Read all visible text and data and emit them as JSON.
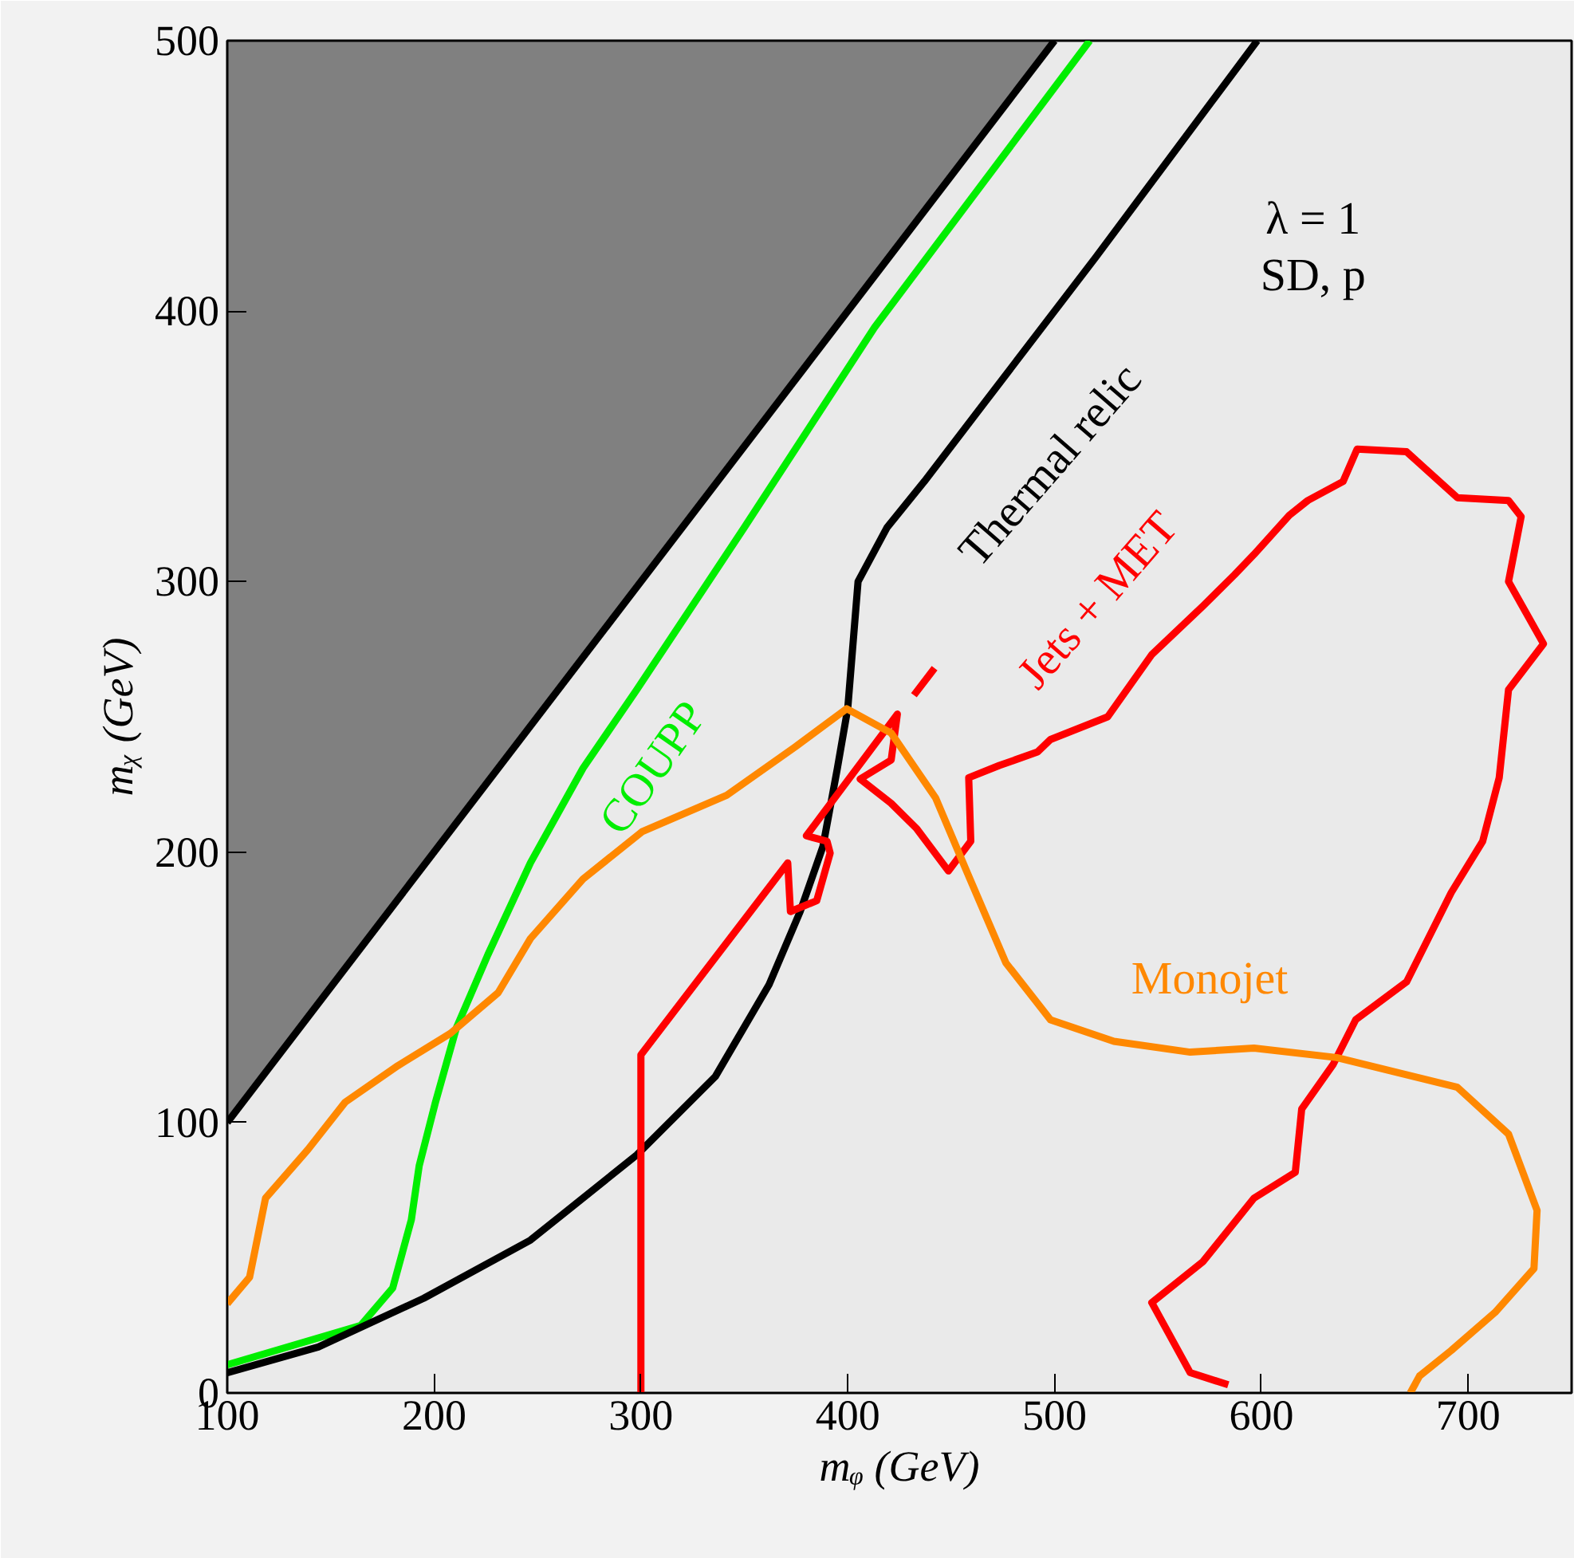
{
  "chart_data": {
    "type": "line",
    "xlabel": "mᵩ (GeV)",
    "ylabel": "mᵪ (GeV)",
    "xlim": [
      100,
      750
    ],
    "ylim": [
      0,
      500
    ],
    "xticks": [
      100,
      200,
      300,
      400,
      500,
      600,
      700
    ],
    "yticks": [
      0,
      100,
      200,
      300,
      400,
      500
    ],
    "grid": false,
    "marker": "none",
    "line_style": "solid",
    "series": [
      {
        "color": "#000000",
        "x": [
          100,
          500
        ],
        "values": [
          100,
          500
        ],
        "lower": [
          100,
          500
        ],
        "upper": [
          500,
          500
        ]
      },
      {
        "color": "#00ee00",
        "x": [
          100,
          164.6,
          180,
          189,
          192.8,
          200.5,
          210.8,
          226,
          246.6,
          272,
          298,
          350,
          413,
          517
        ],
        "values": [
          10.4,
          25,
          38.8,
          64,
          84,
          107,
          135,
          162,
          196,
          231,
          260,
          320,
          394,
          500
        ]
      },
      {
        "color": "#000000",
        "x": [
          100,
          144,
          195,
          246.6,
          298,
          336,
          362,
          377,
          388,
          395,
          400,
          405,
          419,
          437,
          470,
          520,
          598
        ],
        "values": [
          7.5,
          17,
          35,
          56.5,
          88,
          117,
          151,
          178,
          202,
          231,
          253,
          300,
          320,
          337,
          370,
          420,
          500
        ]
      },
      {
        "color": "#ff0000",
        "x": [
          300,
          300,
          371,
          372.3,
          385,
          391.5,
          390,
          380,
          424,
          421,
          406,
          421,
          433.4,
          448.7,
          459.5,
          458.5,
          473.3,
          491.8,
          498,
          525.7,
          547,
          571.8,
          587,
          596.4,
          613.5,
          622.5,
          639.5,
          646.3,
          670.2,
          694.8,
          719.5,
          725.6,
          719.5,
          736.4,
          719.5,
          715,
          707,
          691.8,
          670.2,
          645.6,
          634.8,
          619.5,
          616.4,
          596.4,
          571.8,
          547,
          565.6,
          584,
          null,
          432,
          442
        ],
        "values": [
          0,
          125,
          196,
          178,
          182,
          199.6,
          204,
          206,
          251,
          234,
          227,
          218,
          208.6,
          193,
          204,
          227.5,
          232,
          237,
          241.6,
          250,
          273,
          291,
          302.5,
          310,
          324.5,
          330,
          337,
          349,
          348,
          331,
          330,
          324,
          300,
          277,
          260,
          227.5,
          204,
          185,
          152,
          138,
          121.6,
          105,
          81.6,
          72,
          48.6,
          33.4,
          7.5,
          3,
          null,
          258,
          268
        ]
      },
      {
        "color": "#ff8800",
        "x": [
          100,
          110.8,
          118.5,
          139,
          157,
          182.5,
          208,
          231,
          246.6,
          272,
          300.5,
          341.5,
          374.8,
          399.5,
          421,
          442.5,
          458,
          476.5,
          498,
          528.7,
          565.6,
          596.4,
          636.4,
          694.8,
          719.5,
          733.3,
          731.8,
          713,
          691.8,
          676.5,
          672
        ],
        "values": [
          33,
          42.8,
          72,
          90,
          107.5,
          121,
          133,
          148,
          168,
          190,
          207.5,
          221,
          239,
          253,
          244,
          220,
          192,
          159,
          138,
          130,
          126,
          127.5,
          124,
          113,
          95.7,
          67.5,
          46,
          29.8,
          15.7,
          6.3,
          0
        ]
      }
    ],
    "annotations": [
      "COUPP",
      "Thermal relic",
      "Jets + MET",
      "Monojet",
      "λ = 1",
      "SD, p"
    ]
  }
}
